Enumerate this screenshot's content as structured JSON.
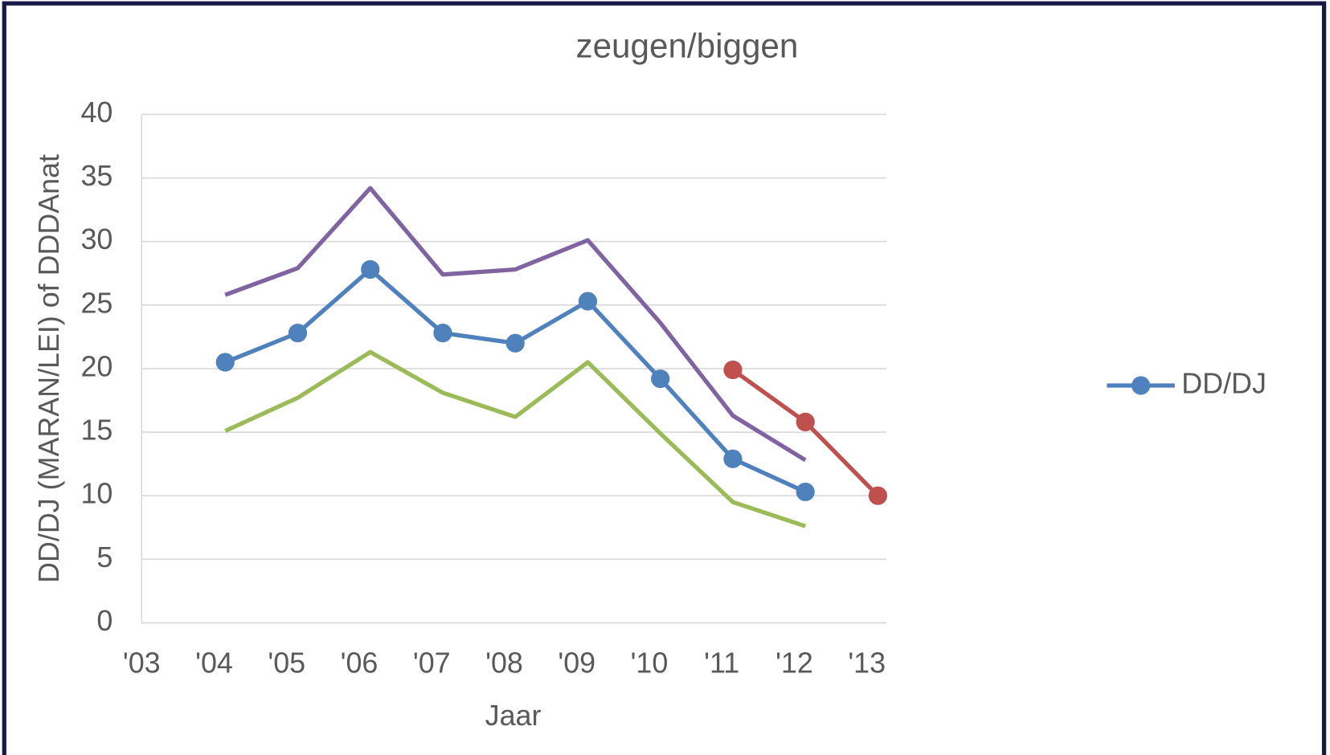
{
  "chart_data": {
    "type": "line",
    "title": "zeugen/biggen",
    "x_label": "Jaar",
    "y_label": "DD/DJ (MARAN/LEI) of DDDAnat",
    "categories": [
      "'03",
      "'04",
      "'05",
      "'06",
      "'07",
      "'08",
      "'09",
      "'10",
      "'11",
      "'12",
      "'13"
    ],
    "ylim": [
      0,
      40
    ],
    "yticks": [
      0,
      5,
      10,
      15,
      20,
      25,
      30,
      35,
      40
    ],
    "grid": true,
    "legend": "right",
    "series": [
      {
        "color": "#8064a2",
        "markers": false,
        "values": [
          null,
          25.8,
          27.9,
          34.2,
          27.4,
          27.8,
          30.1,
          23.6,
          16.3,
          12.8,
          null
        ]
      },
      {
        "color": "#9bbb59",
        "markers": false,
        "values": [
          null,
          15.1,
          17.7,
          21.3,
          18.1,
          16.2,
          20.5,
          14.9,
          9.5,
          7.6,
          null
        ]
      },
      {
        "name": "DD/DJ",
        "color": "#4f81bd",
        "markers": true,
        "values": [
          null,
          20.5,
          22.8,
          27.8,
          22.8,
          22.0,
          25.3,
          19.2,
          12.9,
          10.3,
          null
        ]
      },
      {
        "color": "#c0504d",
        "markers": true,
        "values": [
          null,
          null,
          null,
          null,
          null,
          null,
          null,
          null,
          19.9,
          15.8,
          10.0
        ]
      }
    ]
  }
}
